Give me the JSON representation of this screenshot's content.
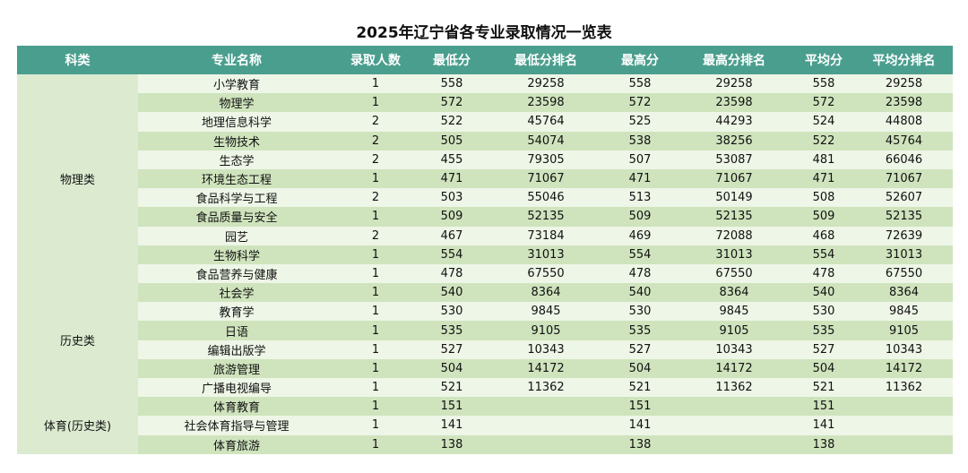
{
  "title": "2025年辽宁省各专业录取情况一览表",
  "headers": [
    "科类",
    "专业名称",
    "录取人数",
    "最低分",
    "最低分排名",
    "最高分",
    "最高分排名",
    "平均分",
    "平均分排名"
  ],
  "groups": [
    {
      "name": "物理类",
      "rows": [
        [
          "小学教育",
          "1",
          "558",
          "29258",
          "558",
          "29258",
          "558",
          "29258"
        ],
        [
          "物理学",
          "1",
          "572",
          "23598",
          "572",
          "23598",
          "572",
          "23598"
        ],
        [
          "地理信息科学",
          "2",
          "522",
          "45764",
          "525",
          "44293",
          "524",
          "44808"
        ],
        [
          "生物技术",
          "2",
          "505",
          "54074",
          "538",
          "38256",
          "522",
          "45764"
        ],
        [
          "生态学",
          "2",
          "455",
          "79305",
          "507",
          "53087",
          "481",
          "66046"
        ],
        [
          "环境生态工程",
          "1",
          "471",
          "71067",
          "471",
          "71067",
          "471",
          "71067"
        ],
        [
          "食品科学与工程",
          "2",
          "503",
          "55046",
          "513",
          "50149",
          "508",
          "52607"
        ],
        [
          "食品质量与安全",
          "1",
          "509",
          "52135",
          "509",
          "52135",
          "509",
          "52135"
        ],
        [
          "园艺",
          "2",
          "467",
          "73184",
          "469",
          "72088",
          "468",
          "72639"
        ],
        [
          "生物科学",
          "1",
          "554",
          "31013",
          "554",
          "31013",
          "554",
          "31013"
        ],
        [
          "食品营养与健康",
          "1",
          "478",
          "67550",
          "478",
          "67550",
          "478",
          "67550"
        ]
      ]
    },
    {
      "name": "历史类",
      "rows": [
        [
          "社会学",
          "1",
          "540",
          "8364",
          "540",
          "8364",
          "540",
          "8364"
        ],
        [
          "教育学",
          "1",
          "530",
          "9845",
          "530",
          "9845",
          "530",
          "9845"
        ],
        [
          "日语",
          "1",
          "535",
          "9105",
          "535",
          "9105",
          "535",
          "9105"
        ],
        [
          "编辑出版学",
          "1",
          "527",
          "10343",
          "527",
          "10343",
          "527",
          "10343"
        ],
        [
          "旅游管理",
          "1",
          "504",
          "14172",
          "504",
          "14172",
          "504",
          "14172"
        ],
        [
          "广播电视编导",
          "1",
          "521",
          "11362",
          "521",
          "11362",
          "521",
          "11362"
        ]
      ]
    },
    {
      "name": "体育(历史类)",
      "rows": [
        [
          "体育教育",
          "1",
          "151",
          "",
          "151",
          "",
          "151",
          ""
        ],
        [
          "社会体育指导与管理",
          "1",
          "141",
          "",
          "141",
          "",
          "141",
          ""
        ],
        [
          "体育旅游",
          "1",
          "138",
          "",
          "138",
          "",
          "138",
          ""
        ]
      ]
    }
  ]
}
